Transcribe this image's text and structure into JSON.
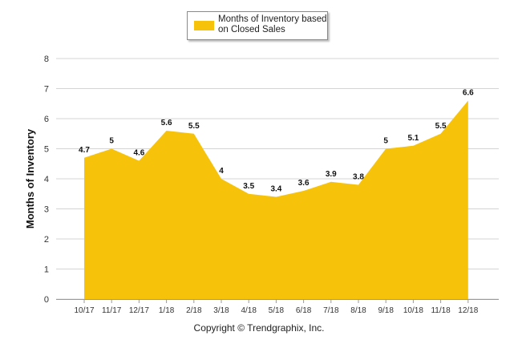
{
  "chart_data": {
    "type": "area",
    "categories": [
      "10/17",
      "11/17",
      "12/17",
      "1/18",
      "2/18",
      "3/18",
      "4/18",
      "5/18",
      "6/18",
      "7/18",
      "8/18",
      "9/18",
      "10/18",
      "11/18",
      "12/18"
    ],
    "series": [
      {
        "name": "Months of Inventory based on Closed Sales",
        "values": [
          4.7,
          5,
          4.6,
          5.6,
          5.5,
          4,
          3.5,
          3.4,
          3.6,
          3.9,
          3.8,
          5,
          5.1,
          5.5,
          6.6
        ]
      }
    ],
    "data_labels": [
      "4.7",
      "5",
      "4.6",
      "5.6",
      "5.5",
      "4",
      "3.5",
      "3.4",
      "3.6",
      "3.9",
      "3.8",
      "5",
      "5.1",
      "5.5",
      "6.6"
    ],
    "ylabel": "Months of Inventory",
    "xlabel": "",
    "ylim": [
      0,
      8
    ],
    "yticks": [
      "0",
      "1",
      "2",
      "3",
      "4",
      "5",
      "6",
      "7",
      "8"
    ],
    "grid": true,
    "legend_position": "top-center",
    "colors": {
      "fill": "#F7C30A",
      "grid": "#d4d4d4"
    }
  },
  "legend": {
    "label_line1": "Months of Inventory based",
    "label_line2": "on Closed Sales"
  },
  "footer": {
    "copyright": "Copyright © Trendgraphix, Inc."
  }
}
